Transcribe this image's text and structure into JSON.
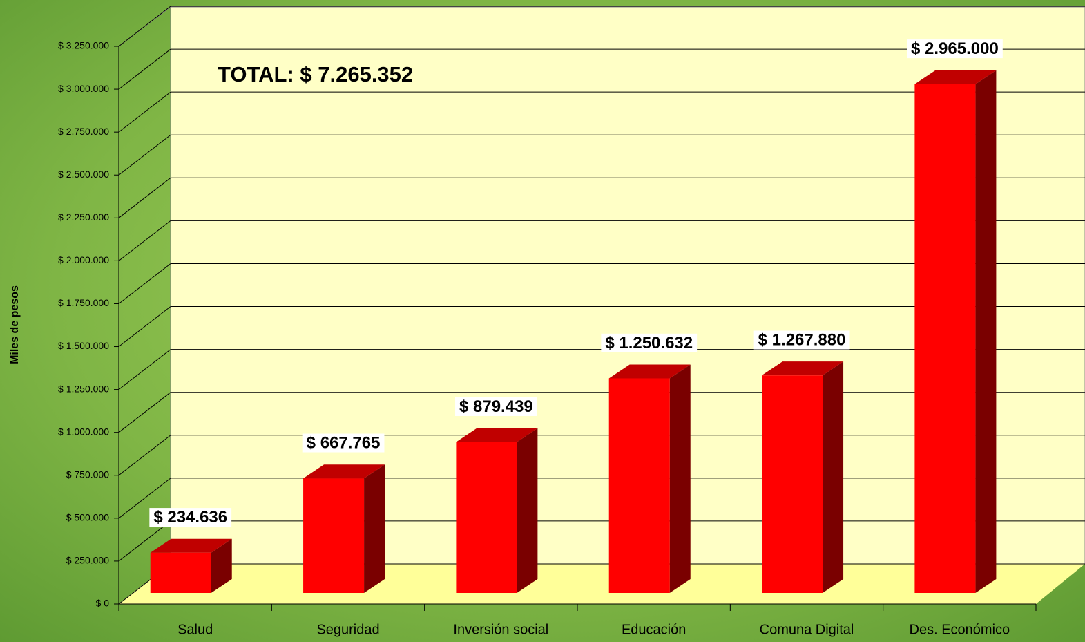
{
  "chart_data": {
    "type": "bar3d",
    "y_axis_label": "Miles de pesos",
    "annotation": "TOTAL: $ 7.265.352",
    "categories": [
      "Salud",
      "Seguridad",
      "Inversión social",
      "Educación",
      "Comuna Digital",
      "Des. Económico"
    ],
    "values": [
      234636,
      667765,
      879439,
      1250632,
      1267880,
      2965000
    ],
    "value_labels": [
      "$ 234.636",
      "$ 667.765",
      "$ 879.439",
      "$ 1.250.632",
      "$ 1.267.880",
      "$ 2.965.000"
    ],
    "color": "#ff0000",
    "ylim": [
      0,
      3250000
    ],
    "yticks": [
      {
        "value": 0,
        "label": "$ 0"
      },
      {
        "value": 250000,
        "label": "$ 250.000"
      },
      {
        "value": 500000,
        "label": "$ 500.000"
      },
      {
        "value": 750000,
        "label": "$ 750.000"
      },
      {
        "value": 1000000,
        "label": "$ 1.000.000"
      },
      {
        "value": 1250000,
        "label": "$ 1.250.000"
      },
      {
        "value": 1500000,
        "label": "$ 1.500.000"
      },
      {
        "value": 1750000,
        "label": "$ 1.750.000"
      },
      {
        "value": 2000000,
        "label": "$ 2.000.000"
      },
      {
        "value": 2250000,
        "label": "$ 2.250.000"
      },
      {
        "value": 2500000,
        "label": "$ 2.500.000"
      },
      {
        "value": 2750000,
        "label": "$ 2.750.000"
      },
      {
        "value": 3000000,
        "label": "$ 3.000.000"
      },
      {
        "value": 3250000,
        "label": "$ 3.250.000"
      }
    ],
    "grid": true
  }
}
